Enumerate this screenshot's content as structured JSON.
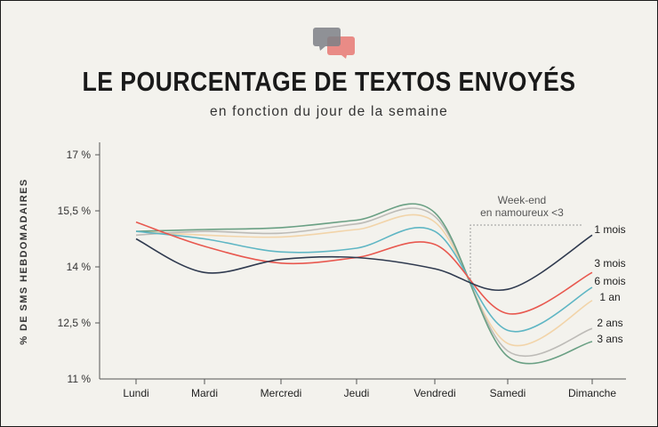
{
  "header": {
    "title": "LE POURCENTAGE DE TEXTOS ENVOYÉS",
    "subtitle": "en fonction du jour de la semaine"
  },
  "icons": [
    "chat-bubbles-icon"
  ],
  "colors": {
    "background": "#f3f2ed",
    "axis": "#555555",
    "1 mois": "#2f3a4f",
    "3 mois": "#e8584f",
    "6 mois": "#5fb6c4",
    "1 an": "#f2d4a9",
    "2 ans": "#bdbbb7",
    "3 ans": "#6aa084"
  },
  "chart_data": {
    "type": "line",
    "title": "LE POURCENTAGE DE TEXTOS ENVOYÉS",
    "subtitle": "en fonction du jour de la semaine",
    "xlabel": "",
    "ylabel": "% DE SMS HEBDOMADAIRES",
    "categories": [
      "Lundi",
      "Mardi",
      "Mercredi",
      "Jeudi",
      "Vendredi",
      "Samedi",
      "Dimanche"
    ],
    "yticks": [
      "17 %",
      "15,5 %",
      "14 %",
      "12,5 %",
      "11 %"
    ],
    "ytick_values": [
      17,
      15.5,
      14,
      12.5,
      11
    ],
    "ylim": [
      11,
      17
    ],
    "grid": false,
    "annotation": {
      "lines": [
        "Week-end",
        "en namoureux <3"
      ],
      "from": "Samedi",
      "to": "Dimanche"
    },
    "series": [
      {
        "name": "1 mois",
        "values": [
          14.75,
          13.85,
          14.2,
          14.25,
          13.95,
          13.4,
          14.85
        ]
      },
      {
        "name": "3 mois",
        "values": [
          15.2,
          14.55,
          14.1,
          14.25,
          14.6,
          12.75,
          13.85
        ]
      },
      {
        "name": "6 mois",
        "values": [
          14.95,
          14.75,
          14.4,
          14.5,
          14.95,
          12.3,
          13.45
        ]
      },
      {
        "name": "1 an",
        "values": [
          14.95,
          14.85,
          14.8,
          15.0,
          15.2,
          11.95,
          13.1
        ]
      },
      {
        "name": "2 ans",
        "values": [
          14.85,
          14.95,
          14.9,
          15.15,
          15.35,
          11.75,
          12.35
        ]
      },
      {
        "name": "3 ans",
        "values": [
          14.95,
          15.0,
          15.05,
          15.25,
          15.45,
          11.6,
          12.0
        ]
      }
    ]
  }
}
